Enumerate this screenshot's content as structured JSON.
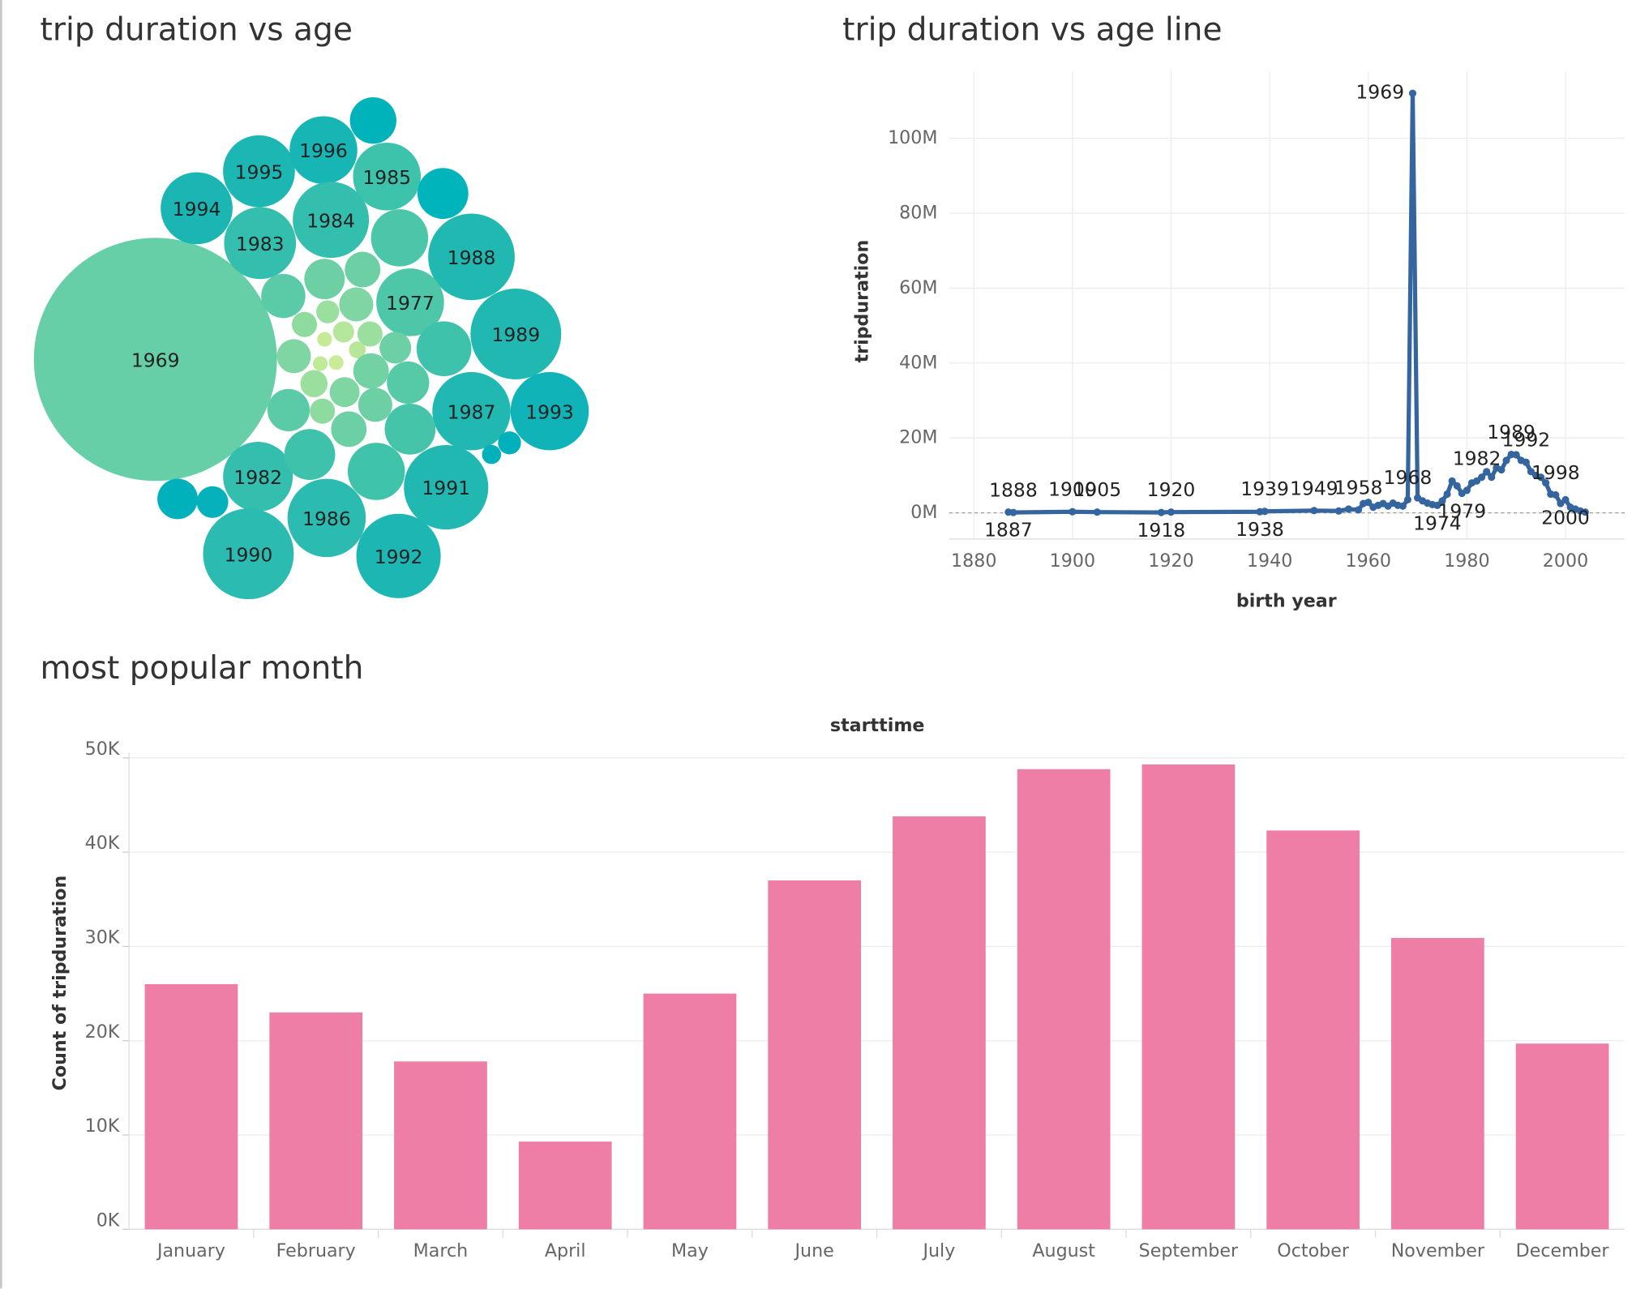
{
  "chart_data": [
    {
      "type": "bubble",
      "title": "trip duration vs age",
      "categories": [
        "1969",
        "1994",
        "1995",
        "1996",
        "1985",
        "1983",
        "1984",
        "1988",
        "1977",
        "1989",
        "1987",
        "1993",
        "1982",
        "1991",
        "1986",
        "1990",
        "1992",
        null,
        null,
        null,
        null,
        null,
        null,
        null,
        null,
        null,
        null,
        null,
        null,
        null,
        null,
        null,
        null,
        null,
        null,
        null,
        null,
        null,
        null,
        null,
        null,
        null,
        null,
        null,
        null,
        null,
        null,
        null,
        null,
        null
      ],
      "values": [
        112000000,
        9800000,
        9800000,
        8700000,
        8700000,
        9800000,
        11000000,
        14200000,
        8700000,
        15600000,
        11600000,
        11600000,
        9200000,
        13500000,
        11600000,
        15600000,
        13500000,
        4100000,
        4900000,
        6200000,
        2400000,
        3100000,
        3700000,
        2200000,
        1000000,
        1200000,
        850000,
        1200000,
        1900000,
        5700000,
        2200000,
        410000,
        540000,
        410000,
        410000,
        2400000,
        1400000,
        1700000,
        3400000,
        3400000,
        1200000,
        2200000,
        2400000,
        4900000,
        4900000,
        6200000,
        3100000,
        1900000,
        1000000,
        690000
      ],
      "colors": [
        "#66cfa8",
        "#1bb6b4",
        "#1db7b3",
        "#18b5b5",
        "#3dc2ac",
        "#33beae",
        "#33beae",
        "#22b8b2",
        "#4ec7a8",
        "#22b8b2",
        "#22b8b2",
        "#10b3b7",
        "#33beae",
        "#22b8b2",
        "#2bbbb0",
        "#2bbbb0",
        "#1db7b3",
        "#00b3bb",
        "#00b4bb",
        "#4bc6a8",
        "#6dd0a4",
        "#6dd0a4",
        "#5acba6",
        "#7fd6a2",
        "#9adf9e",
        "#8ddb9f",
        "#b5e69b",
        "#9adf9e",
        "#6dd0a4",
        "#3fc2ac",
        "#7fd6a2",
        "#c5ea98",
        "#b8e79a",
        "#c8eb98",
        "#c0e998",
        "#73d2a4",
        "#9adf9e",
        "#7fd6a2",
        "#56caa7",
        "#5acba6",
        "#8ddb9f",
        "#6dd0a4",
        "#6dd0a4",
        "#45c4aa",
        "#3fc2ac",
        "#40c3ab",
        "#00b0ba",
        "#05b1ba",
        "#00b0ba",
        "#00b0ba"
      ]
    },
    {
      "type": "line",
      "title": "trip duration vs age line",
      "x_label": "birth year",
      "y_label": "tripduration",
      "x": [
        1887,
        1888,
        1900,
        1905,
        1918,
        1920,
        1938,
        1939,
        1949,
        1954,
        1956,
        1958,
        1959,
        1960,
        1961,
        1962,
        1963,
        1964,
        1965,
        1966,
        1967,
        1968,
        1969,
        1970,
        1971,
        1972,
        1973,
        1974,
        1975,
        1976,
        1977,
        1978,
        1979,
        1980,
        1981,
        1982,
        1983,
        1984,
        1985,
        1986,
        1987,
        1988,
        1989,
        1990,
        1991,
        1992,
        1993,
        1994,
        1995,
        1996,
        1997,
        1998,
        1999,
        2000,
        2001,
        2002,
        2003,
        2004
      ],
      "series": [
        {
          "name": "tripduration",
          "color": "#34659f",
          "values": [
            200000,
            100000,
            300000,
            200000,
            100000,
            200000,
            300000,
            400000,
            600000,
            500000,
            1000000,
            800000,
            2500000,
            2800000,
            1500000,
            2000000,
            2500000,
            1800000,
            2600000,
            2000000,
            1800000,
            3500000,
            112000000,
            4000000,
            3200000,
            2600000,
            2200000,
            2000000,
            3200000,
            5000000,
            8500000,
            7200000,
            5200000,
            6000000,
            8000000,
            8500000,
            9500000,
            11000000,
            9500000,
            12000000,
            11500000,
            14000000,
            15600000,
            15500000,
            14000000,
            13500000,
            11000000,
            10000000,
            9500000,
            8000000,
            5000000,
            4800000,
            2500000,
            3500000,
            1500000,
            1000000,
            500000,
            200000
          ]
        }
      ],
      "xlim": [
        1875,
        2012
      ],
      "xticks": [
        1880,
        1900,
        1920,
        1940,
        1960,
        1980,
        2000
      ],
      "ylim": [
        -7000000,
        118000000
      ],
      "yticks": [
        {
          "value": 0,
          "label": "0M"
        },
        {
          "value": 20000000,
          "label": "20M"
        },
        {
          "value": 40000000,
          "label": "40M"
        },
        {
          "value": 60000000,
          "label": "60M"
        },
        {
          "value": 80000000,
          "label": "80M"
        },
        {
          "value": 100000000,
          "label": "100M"
        }
      ],
      "grid": true
    },
    {
      "type": "bar",
      "title": "most popular month",
      "x_label": "starttime",
      "y_label": "Count of tripduration",
      "categories": [
        "January",
        "February",
        "March",
        "April",
        "May",
        "June",
        "July",
        "August",
        "September",
        "October",
        "November",
        "December"
      ],
      "values": [
        26000,
        23000,
        17800,
        9300,
        25000,
        37000,
        43800,
        48800,
        49300,
        42300,
        30900,
        19700
      ],
      "color": "#ef7ea7",
      "ylim": [
        0,
        50000
      ],
      "yticks": [
        {
          "value": 0,
          "label": "0K"
        },
        {
          "value": 10000,
          "label": "10K"
        },
        {
          "value": 20000,
          "label": "20K"
        },
        {
          "value": 30000,
          "label": "30K"
        },
        {
          "value": 40000,
          "label": "40K"
        },
        {
          "value": 50000,
          "label": "50K"
        }
      ],
      "grid": true
    }
  ]
}
